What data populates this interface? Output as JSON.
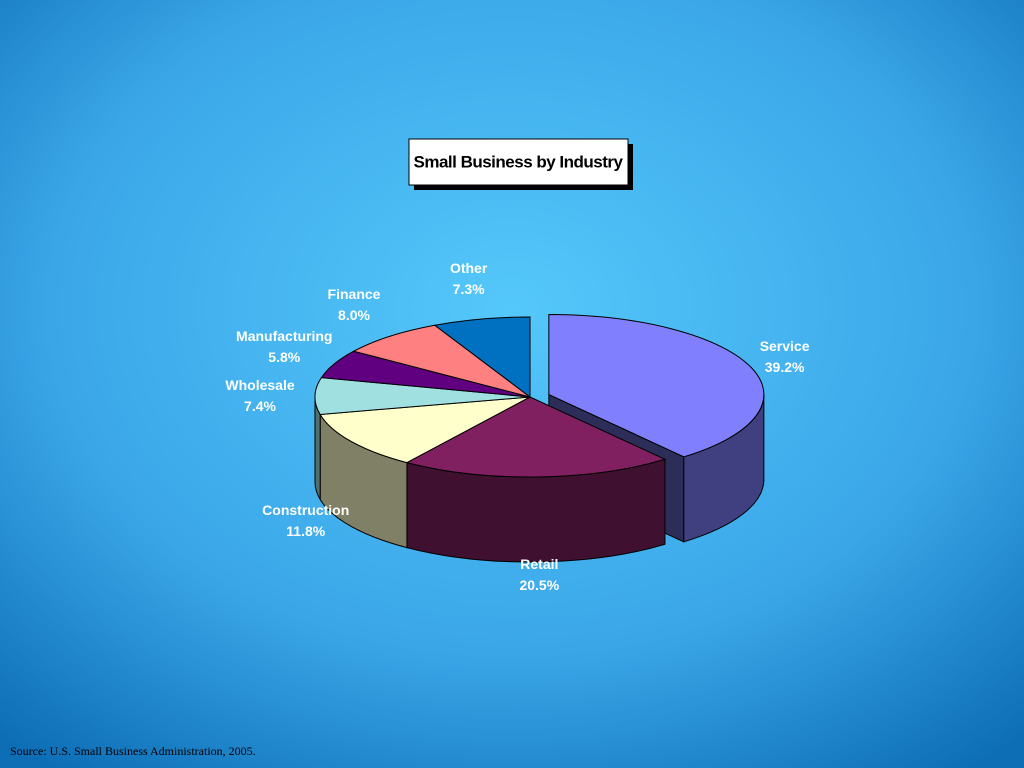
{
  "chart_data": {
    "type": "pie",
    "title": "Small Business by Industry",
    "categories": [
      "Service",
      "Retail",
      "Construction",
      "Wholesale",
      "Manufacturing",
      "Finance",
      "Other"
    ],
    "values": [
      39.2,
      20.5,
      11.8,
      7.4,
      5.8,
      8.0,
      7.3
    ],
    "value_labels": [
      "39.2%",
      "20.5%",
      "11.8%",
      "7.4%",
      "5.8%",
      "8.0%",
      "7.3%"
    ],
    "colors": [
      "#8080ff",
      "#802060",
      "#ffffcc",
      "#a0e0e0",
      "#600080",
      "#ff8080",
      "#0070c0"
    ]
  },
  "source": "Source: U.S. Small Business Administration, 2005."
}
